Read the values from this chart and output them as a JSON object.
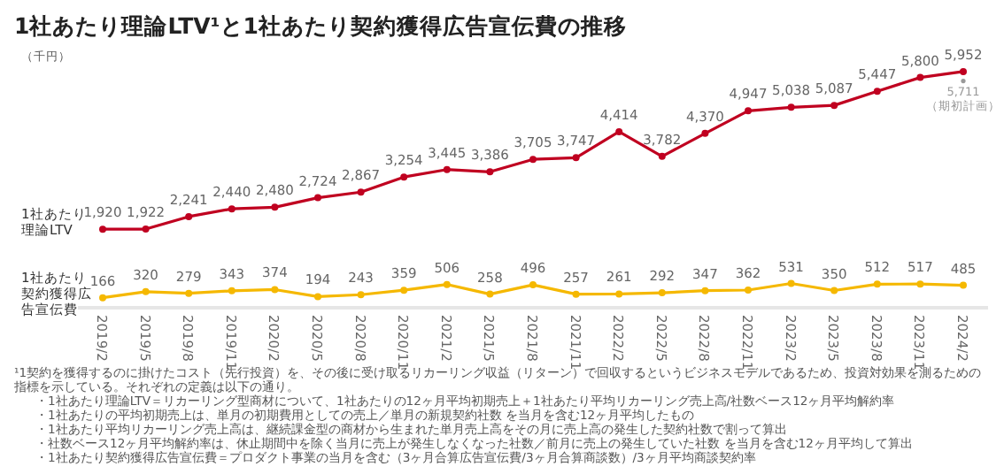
{
  "chart_data": {
    "type": "line",
    "title": "1社あたり理論LTV¹と1社あたり契約獲得広告宣伝費の推移",
    "ylabel": "（千円）",
    "categories": [
      "2019/2",
      "2019/5",
      "2019/8",
      "2019/11",
      "2020/2",
      "2020/5",
      "2020/8",
      "2020/11",
      "2021/2",
      "2021/5",
      "2021/8",
      "2021/11",
      "2022/2",
      "2022/5",
      "2022/8",
      "2022/11",
      "2023/2",
      "2023/5",
      "2023/8",
      "2023/11",
      "2024/2"
    ],
    "series": [
      {
        "name": "1社あたり理論LTV",
        "color": "#c00020",
        "values": [
          1920,
          1922,
          2241,
          2440,
          2480,
          2724,
          2867,
          3254,
          3445,
          3386,
          3705,
          3747,
          4414,
          3782,
          4370,
          4947,
          5038,
          5087,
          5447,
          5800,
          5952
        ],
        "value_labels": [
          "1,920",
          "1,922",
          "2,241",
          "2,440",
          "2,480",
          "2,724",
          "2,867",
          "3,254",
          "3,445",
          "3,386",
          "3,705",
          "3,747",
          "4,414",
          "3,782",
          "4,370",
          "4,947",
          "5,038",
          "5,087",
          "5,447",
          "5,800",
          "5,952"
        ]
      },
      {
        "name": "1社あたり契約獲得広告宣伝費",
        "color": "#f5b800",
        "values": [
          166,
          320,
          279,
          343,
          374,
          194,
          243,
          359,
          506,
          258,
          496,
          257,
          261,
          292,
          347,
          362,
          531,
          350,
          512,
          517,
          485
        ],
        "value_labels": [
          "166",
          "320",
          "279",
          "343",
          "374",
          "194",
          "243",
          "359",
          "506",
          "258",
          "496",
          "257",
          "261",
          "292",
          "347",
          "362",
          "531",
          "350",
          "512",
          "517",
          "485"
        ]
      }
    ],
    "tick_labels": "x",
    "marker": "circle",
    "annotations": [
      {
        "text": "5,711\n（期初計画）",
        "x": "2024/2",
        "y": 5711
      },
      "¹1契約を獲得するのに掛けたコスト（先行投資）を、その後に受け取るリカーリング収益（リターン）で回収するというビジネスモデルであるため、投資対効果を測るための指標を示している。それぞれの定義は以下の通り。",
      "・1社あたり理論LTV＝リカーリング型商材について、1社あたりの12ヶ月平均初期売上＋1社あたり平均リカーリング売上高/社数ベース12ヶ月平均解約率",
      "・1社あたりの平均初期売上は、単月の初期費用としての売上／単月の新規契約社数 を当月を含む12ヶ月平均したもの",
      "・1社あたり平均リカーリング売上高は、継続課金型の商材から生まれた単月売上高をその月に売上高の発生した契約社数で割って算出",
      "・社数ベース12ヶ月平均解約率は、休止期間中を除く当月に売上が発生しなくなった社数／前月に売上の発生していた社数 を当月を含む12ヶ月平均して算出",
      "・1社あたり契約獲得広告宣伝費＝プロダクト事業の当月を含む（3ヶ月合算広告宣伝費/3ヶ月合算商談数）/3ヶ月平均商談契約率"
    ]
  }
}
